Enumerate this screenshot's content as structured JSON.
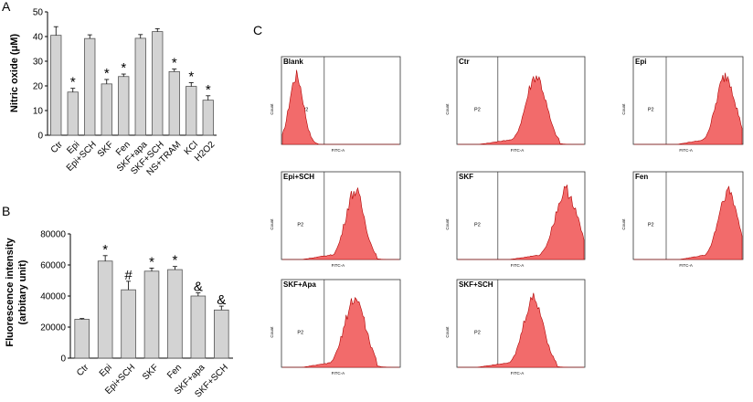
{
  "panels": {
    "a": "A",
    "b": "B",
    "c": "C"
  },
  "chart_data": [
    {
      "type": "bar",
      "panel": "A",
      "ylabel": "Nitric oxide (μM)",
      "ylim": [
        0,
        50
      ],
      "yticks": [
        0,
        10,
        20,
        30,
        40,
        50
      ],
      "categories": [
        "Ctr",
        "Epi",
        "Epi+SCH",
        "SKF",
        "Fen",
        "SKF+apa",
        "SKF+SCH",
        "NS+TRAM",
        "KCl",
        "H2O2"
      ],
      "values": [
        40.5,
        17.5,
        39.2,
        20.8,
        23.8,
        39.3,
        42.0,
        25.8,
        19.8,
        14.2
      ],
      "errors": [
        3.5,
        1.5,
        1.5,
        1.8,
        1.0,
        1.5,
        1.2,
        1.0,
        1.5,
        1.8
      ],
      "markers": [
        "",
        "*",
        "",
        "*",
        "*",
        "",
        "",
        "*",
        "*",
        "*"
      ],
      "color": "#d3d3d3"
    },
    {
      "type": "bar",
      "panel": "B",
      "ylabel": "Fluorescence intensity",
      "ylabel2": "(arbitary unit)",
      "ylim": [
        0,
        80000
      ],
      "yticks": [
        0,
        20000,
        40000,
        60000,
        80000
      ],
      "categories": [
        "Ctr",
        "Epi",
        "Epi+SCH",
        "SKF",
        "Fen",
        "SKF+apa",
        "SKF+SCH"
      ],
      "values": [
        25000,
        62500,
        44000,
        56000,
        57000,
        40000,
        31000
      ],
      "errors": [
        500,
        3500,
        5500,
        2000,
        2000,
        2000,
        2500
      ],
      "markers": [
        "",
        "*",
        "#",
        "*",
        "*",
        "&",
        "&"
      ],
      "color": "#d3d3d3"
    }
  ],
  "flow": {
    "panels": [
      {
        "title": "Blank",
        "label": "P2"
      },
      {
        "title": "Ctr",
        "label": "P2"
      },
      {
        "title": "Epi",
        "label": "P2"
      },
      {
        "title": "Epi+SCH",
        "label": "P2"
      },
      {
        "title": "SKF",
        "label": "P2"
      },
      {
        "title": "Fen",
        "label": "P2"
      },
      {
        "title": "SKF+Apa",
        "label": "P2"
      },
      {
        "title": "SKF+SCH",
        "label": "P2"
      }
    ],
    "xlabel": "FITC-A",
    "ylabel": "Count",
    "fill_color": "#f26b6b",
    "stroke_color": "#b00000"
  }
}
